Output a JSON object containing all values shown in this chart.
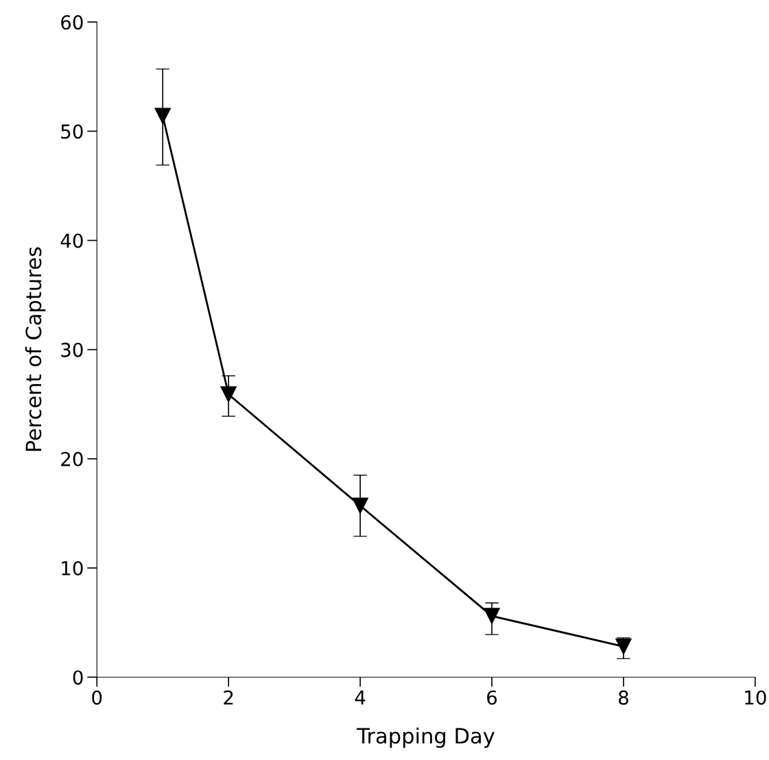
{
  "chart_data": {
    "type": "line",
    "xlabel": "Trapping Day",
    "ylabel": "Percent of Captures",
    "x": [
      1,
      2,
      4,
      6,
      8
    ],
    "series": [
      {
        "color": "#000000",
        "values": [
          51.4,
          25.9,
          15.7,
          5.6,
          2.8
        ],
        "errors": [
          [
            46.9,
            55.7
          ],
          [
            23.9,
            27.6
          ],
          [
            12.9,
            18.5
          ],
          [
            3.9,
            6.8
          ],
          [
            1.7,
            3.6
          ]
        ]
      }
    ],
    "xlim": [
      0,
      10
    ],
    "xticks": [
      0,
      2,
      4,
      6,
      8,
      10
    ],
    "ylim": [
      0,
      60
    ],
    "yticks": [
      0,
      10,
      20,
      30,
      40,
      50,
      60
    ],
    "marker": "triangle",
    "line_style": "solid",
    "grid": false,
    "legend": false
  }
}
